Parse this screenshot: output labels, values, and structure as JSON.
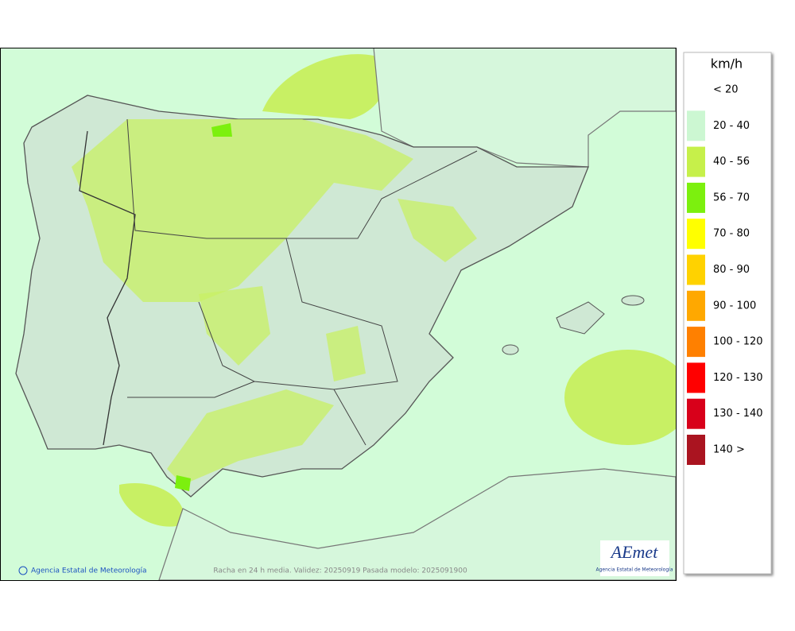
{
  "map": {
    "footer": {
      "credit": "Agencia Estatal de Meteorología",
      "caption": "Racha en 24 h media. Validez: 20250919 Pasada modelo: 2025091900"
    },
    "logo": {
      "name": "AEmet",
      "subtitle": "Agencia Estatal de Meteorología"
    }
  },
  "legend": {
    "unit": "km/h",
    "items": [
      {
        "label": "< 20",
        "color": "#ffffff"
      },
      {
        "label": "20 - 40",
        "color": "#ccf7d2"
      },
      {
        "label": "40 - 56",
        "color": "#c6f04a"
      },
      {
        "label": "56 - 70",
        "color": "#7cf00e"
      },
      {
        "label": "70 - 80",
        "color": "#ffff00"
      },
      {
        "label": "80 - 90",
        "color": "#ffd200"
      },
      {
        "label": "90 - 100",
        "color": "#ffa800"
      },
      {
        "label": "100 - 120",
        "color": "#ff8000"
      },
      {
        "label": "120 - 130",
        "color": "#ff0000"
      },
      {
        "label": "130 - 140",
        "color": "#d8001a"
      },
      {
        "label": "140 >",
        "color": "#aa1420"
      }
    ]
  }
}
